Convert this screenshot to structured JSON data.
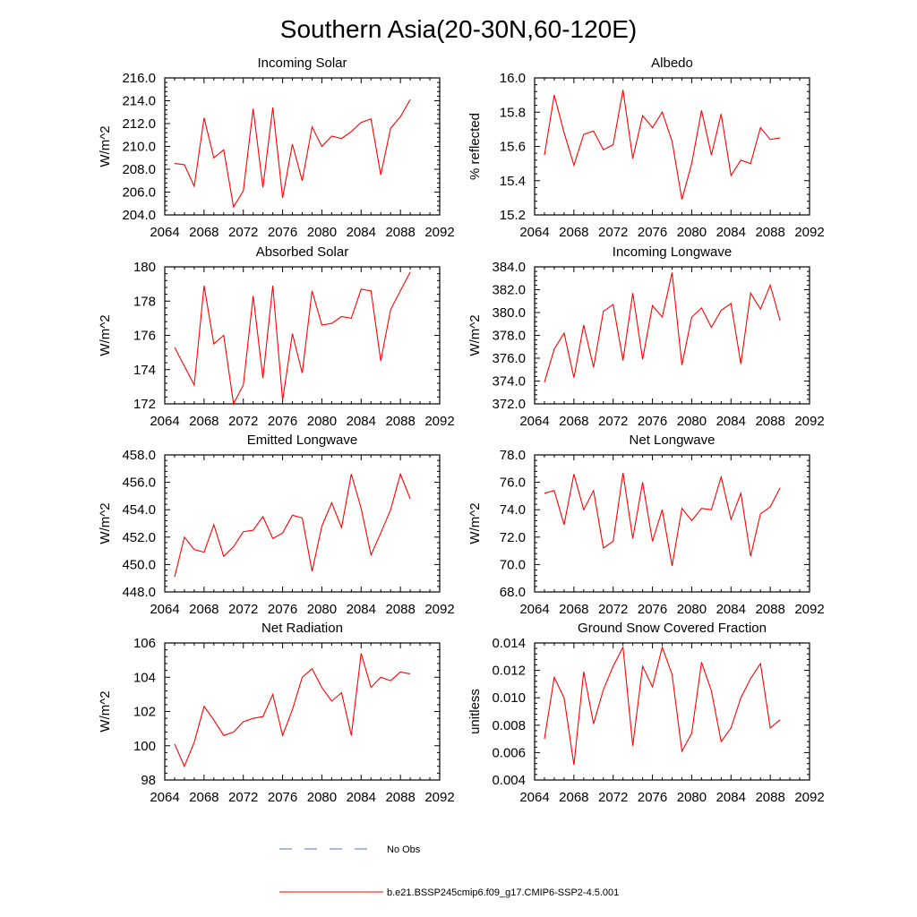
{
  "figure": {
    "title": "Southern Asia(20-30N,60-120E)",
    "legend": [
      {
        "label": "No Obs",
        "color": "#5b6fd6",
        "dash": true
      },
      {
        "label": "b.e21.BSSP245cmip6.f09_g17.CMIP6-SSP2-4.5.001",
        "color": "#ff0000",
        "dash": false
      }
    ]
  },
  "chart_data": [
    {
      "type": "line",
      "title": "Incoming Solar",
      "ylabel": "W/m^2",
      "xlim": [
        2064,
        2092
      ],
      "ylim": [
        204,
        216
      ],
      "xticks": [
        "2064",
        "2068",
        "2072",
        "2076",
        "2080",
        "2084",
        "2088",
        "2092"
      ],
      "yticks": [
        "204.0",
        "206.0",
        "208.0",
        "210.0",
        "212.0",
        "214.0",
        "216.0"
      ],
      "series": [
        {
          "color": "#ff0000",
          "x": [
            2065,
            2066,
            2067,
            2068,
            2069,
            2070,
            2071,
            2072,
            2073,
            2074,
            2075,
            2076,
            2077,
            2078,
            2079,
            2080,
            2081,
            2082,
            2083,
            2084,
            2085,
            2086,
            2087,
            2088,
            2089
          ],
          "values": [
            208.5,
            208.4,
            206.5,
            212.5,
            209.0,
            209.7,
            204.7,
            206.1,
            213.3,
            206.4,
            213.4,
            205.5,
            210.2,
            207.0,
            211.7,
            210.0,
            210.9,
            210.7,
            211.3,
            212.1,
            212.4,
            207.5,
            211.6,
            212.6,
            214.1
          ]
        }
      ]
    },
    {
      "type": "line",
      "title": "Albedo",
      "ylabel": "% reflected",
      "xlim": [
        2064,
        2092
      ],
      "ylim": [
        15.2,
        16.0
      ],
      "xticks": [
        "2064",
        "2068",
        "2072",
        "2076",
        "2080",
        "2084",
        "2088",
        "2092"
      ],
      "yticks": [
        "15.2",
        "15.4",
        "15.6",
        "15.8",
        "16.0"
      ],
      "series": [
        {
          "color": "#ff0000",
          "x": [
            2065,
            2066,
            2067,
            2068,
            2069,
            2070,
            2071,
            2072,
            2073,
            2074,
            2075,
            2076,
            2077,
            2078,
            2079,
            2080,
            2081,
            2082,
            2083,
            2084,
            2085,
            2086,
            2087,
            2088,
            2089
          ],
          "values": [
            15.55,
            15.9,
            15.68,
            15.49,
            15.67,
            15.69,
            15.58,
            15.61,
            15.93,
            15.53,
            15.78,
            15.71,
            15.8,
            15.63,
            15.29,
            15.5,
            15.81,
            15.55,
            15.79,
            15.43,
            15.52,
            15.5,
            15.71,
            15.64,
            15.65
          ]
        }
      ]
    },
    {
      "type": "line",
      "title": "Absorbed Solar",
      "ylabel": "W/m^2",
      "xlim": [
        2064,
        2092
      ],
      "ylim": [
        172,
        180
      ],
      "xticks": [
        "2064",
        "2068",
        "2072",
        "2076",
        "2080",
        "2084",
        "2088",
        "2092"
      ],
      "yticks": [
        "172",
        "174",
        "176",
        "178",
        "180"
      ],
      "series": [
        {
          "color": "#ff0000",
          "x": [
            2065,
            2066,
            2067,
            2068,
            2069,
            2070,
            2071,
            2072,
            2073,
            2074,
            2075,
            2076,
            2077,
            2078,
            2079,
            2080,
            2081,
            2082,
            2083,
            2084,
            2085,
            2086,
            2087,
            2088,
            2089
          ],
          "values": [
            175.3,
            174.2,
            173.1,
            178.9,
            175.5,
            176.0,
            172.0,
            173.1,
            178.3,
            173.5,
            178.9,
            172.2,
            176.1,
            173.8,
            178.6,
            176.6,
            176.7,
            177.1,
            177.0,
            178.7,
            178.6,
            174.5,
            177.5,
            178.6,
            179.7
          ]
        }
      ]
    },
    {
      "type": "line",
      "title": "Incoming Longwave",
      "ylabel": "W/m^2",
      "xlim": [
        2064,
        2092
      ],
      "ylim": [
        372,
        384
      ],
      "xticks": [
        "2064",
        "2068",
        "2072",
        "2076",
        "2080",
        "2084",
        "2088",
        "2092"
      ],
      "yticks": [
        "372.0",
        "374.0",
        "376.0",
        "378.0",
        "380.0",
        "382.0",
        "384.0"
      ],
      "series": [
        {
          "color": "#ff0000",
          "x": [
            2065,
            2066,
            2067,
            2068,
            2069,
            2070,
            2071,
            2072,
            2073,
            2074,
            2075,
            2076,
            2077,
            2078,
            2079,
            2080,
            2081,
            2082,
            2083,
            2084,
            2085,
            2086,
            2087,
            2088,
            2089
          ],
          "values": [
            373.9,
            376.8,
            378.2,
            374.3,
            378.9,
            375.2,
            380.1,
            380.7,
            375.8,
            381.7,
            375.9,
            380.6,
            379.6,
            383.5,
            375.4,
            379.6,
            380.4,
            378.7,
            380.2,
            380.8,
            375.5,
            381.7,
            380.3,
            382.4,
            379.3
          ]
        }
      ]
    },
    {
      "type": "line",
      "title": "Emitted Longwave",
      "ylabel": "W/m^2",
      "xlim": [
        2064,
        2092
      ],
      "ylim": [
        448,
        458
      ],
      "xticks": [
        "2064",
        "2068",
        "2072",
        "2076",
        "2080",
        "2084",
        "2088",
        "2092"
      ],
      "yticks": [
        "448.0",
        "450.0",
        "452.0",
        "454.0",
        "456.0",
        "458.0"
      ],
      "series": [
        {
          "color": "#ff0000",
          "x": [
            2065,
            2066,
            2067,
            2068,
            2069,
            2070,
            2071,
            2072,
            2073,
            2074,
            2075,
            2076,
            2077,
            2078,
            2079,
            2080,
            2081,
            2082,
            2083,
            2084,
            2085,
            2086,
            2087,
            2088,
            2089
          ],
          "values": [
            449.1,
            452.0,
            451.1,
            450.9,
            452.9,
            450.6,
            451.3,
            452.4,
            452.5,
            453.5,
            451.9,
            452.3,
            453.6,
            453.4,
            449.5,
            452.8,
            454.5,
            452.7,
            456.6,
            454.1,
            450.7,
            452.3,
            454.0,
            456.6,
            454.8
          ]
        }
      ]
    },
    {
      "type": "line",
      "title": "Net Longwave",
      "ylabel": "W/m^2",
      "xlim": [
        2064,
        2092
      ],
      "ylim": [
        68,
        78
      ],
      "xticks": [
        "2064",
        "2068",
        "2072",
        "2076",
        "2080",
        "2084",
        "2088",
        "2092"
      ],
      "yticks": [
        "68.0",
        "70.0",
        "72.0",
        "74.0",
        "76.0",
        "78.0"
      ],
      "series": [
        {
          "color": "#ff0000",
          "x": [
            2065,
            2066,
            2067,
            2068,
            2069,
            2070,
            2071,
            2072,
            2073,
            2074,
            2075,
            2076,
            2077,
            2078,
            2079,
            2080,
            2081,
            2082,
            2083,
            2084,
            2085,
            2086,
            2087,
            2088,
            2089
          ],
          "values": [
            75.2,
            75.4,
            72.9,
            76.6,
            74.0,
            75.4,
            71.2,
            71.7,
            76.7,
            71.9,
            76.0,
            71.7,
            74.0,
            69.9,
            74.1,
            73.2,
            74.1,
            74.0,
            76.4,
            73.3,
            75.2,
            70.6,
            73.7,
            74.2,
            75.6
          ]
        }
      ]
    },
    {
      "type": "line",
      "title": "Net Radiation",
      "ylabel": "W/m^2",
      "xlim": [
        2064,
        2092
      ],
      "ylim": [
        98,
        106
      ],
      "xticks": [
        "2064",
        "2068",
        "2072",
        "2076",
        "2080",
        "2084",
        "2088",
        "2092"
      ],
      "yticks": [
        "98",
        "100",
        "102",
        "104",
        "106"
      ],
      "series": [
        {
          "color": "#ff0000",
          "x": [
            2065,
            2066,
            2067,
            2068,
            2069,
            2070,
            2071,
            2072,
            2073,
            2074,
            2075,
            2076,
            2077,
            2078,
            2079,
            2080,
            2081,
            2082,
            2083,
            2084,
            2085,
            2086,
            2087,
            2088,
            2089
          ],
          "values": [
            100.1,
            98.8,
            100.2,
            102.3,
            101.5,
            100.6,
            100.8,
            101.4,
            101.6,
            101.7,
            103.0,
            100.6,
            102.1,
            104.0,
            104.5,
            103.4,
            102.6,
            103.1,
            100.6,
            105.4,
            103.4,
            104.0,
            103.8,
            104.3,
            104.2
          ]
        }
      ]
    },
    {
      "type": "line",
      "title": "Ground Snow Covered Fraction",
      "ylabel": "unitless",
      "xlim": [
        2064,
        2092
      ],
      "ylim": [
        0.004,
        0.014
      ],
      "xticks": [
        "2064",
        "2068",
        "2072",
        "2076",
        "2080",
        "2084",
        "2088",
        "2092"
      ],
      "yticks": [
        "0.004",
        "0.006",
        "0.008",
        "0.010",
        "0.012",
        "0.014"
      ],
      "series": [
        {
          "color": "#ff0000",
          "x": [
            2065,
            2066,
            2067,
            2068,
            2069,
            2070,
            2071,
            2072,
            2073,
            2074,
            2075,
            2076,
            2077,
            2078,
            2079,
            2080,
            2081,
            2082,
            2083,
            2084,
            2085,
            2086,
            2087,
            2088,
            2089
          ],
          "values": [
            0.007,
            0.0115,
            0.01,
            0.0051,
            0.0119,
            0.0081,
            0.0106,
            0.0123,
            0.0137,
            0.0065,
            0.0123,
            0.0108,
            0.0137,
            0.0117,
            0.0061,
            0.0074,
            0.0126,
            0.0105,
            0.0068,
            0.0078,
            0.01,
            0.0114,
            0.0125,
            0.0078,
            0.0084
          ]
        }
      ]
    }
  ]
}
